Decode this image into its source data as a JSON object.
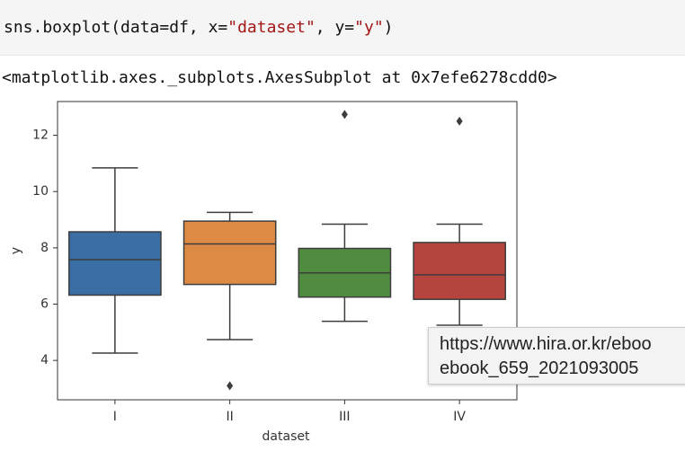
{
  "code": "sns.boxplot(data=df, x=\"dataset\", y=\"y\")",
  "output_text": "<matplotlib.axes._subplots.AxesSubplot at 0x7efe6278cdd0>",
  "tooltip": {
    "lines": [
      "https://www.hira.or.kr/eboo",
      "ebook_659_2021093005"
    ]
  },
  "chart_data": {
    "type": "box",
    "xlabel": "dataset",
    "ylabel": "y",
    "categories": [
      "I",
      "II",
      "III",
      "IV"
    ],
    "boxes": [
      {
        "color": "#3a6ea5",
        "min": 4.26,
        "q1": 6.32,
        "median": 7.58,
        "q3": 8.57,
        "max": 10.84,
        "outliers": []
      },
      {
        "color": "#dd8a45",
        "min": 4.74,
        "q1": 6.7,
        "median": 8.14,
        "q3": 8.95,
        "max": 9.26,
        "outliers": [
          3.1
        ]
      },
      {
        "color": "#4f8c3f",
        "min": 5.39,
        "q1": 6.25,
        "median": 7.11,
        "q3": 7.98,
        "max": 8.84,
        "outliers": [
          12.74
        ]
      },
      {
        "color": "#b5443f",
        "min": 5.25,
        "q1": 6.17,
        "median": 7.04,
        "q3": 8.19,
        "max": 8.84,
        "outliers": [
          12.5
        ]
      }
    ],
    "ylim": [
      2.6,
      13.2
    ],
    "yticks": [
      4,
      6,
      8,
      10,
      12
    ]
  }
}
